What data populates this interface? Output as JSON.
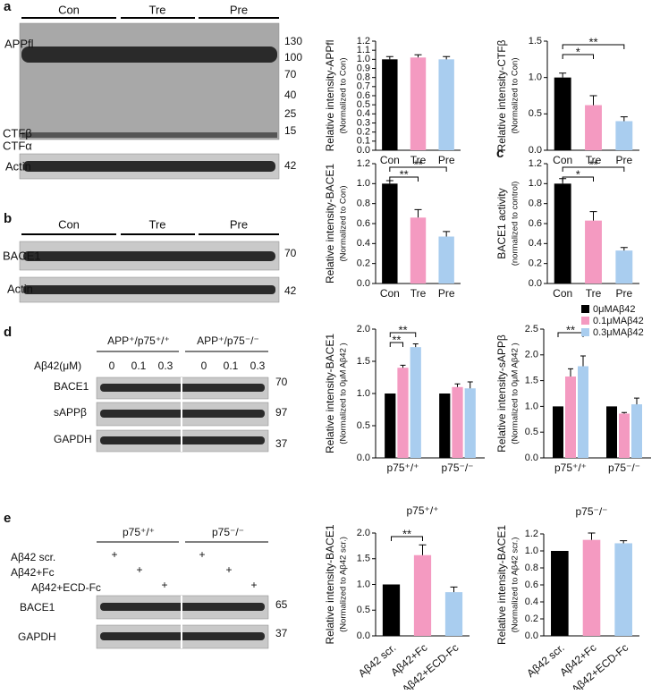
{
  "figure": {
    "panel_letters": [
      "a",
      "b",
      "c",
      "d",
      "e"
    ],
    "blot_a": {
      "groups": [
        "Con",
        "Tre",
        "Pre"
      ],
      "rows": [
        "APPfl",
        "CTFβ",
        "CTFα",
        "Actin"
      ],
      "markers": [
        130,
        100,
        70,
        40,
        25,
        15,
        42
      ]
    },
    "blot_b": {
      "groups": [
        "Con",
        "Tre",
        "Pre"
      ],
      "rows": [
        "BACE1",
        "Actin"
      ],
      "markers": [
        70,
        42
      ]
    },
    "blot_d": {
      "groups": [
        "APP⁺/p75⁺/⁺",
        "APP⁺/p75⁻/⁻"
      ],
      "dose_label": "Aβ42(μM)",
      "doses": [
        0,
        0.1,
        0.3
      ],
      "rows": [
        "BACE1",
        "sAPPβ",
        "GAPDH"
      ],
      "markers": [
        70,
        97,
        37
      ]
    },
    "blot_e": {
      "groups": [
        "p75⁺/⁺",
        "p75⁻/⁻"
      ],
      "treatments": [
        {
          "label": "Aβ42 scr.",
          "marks": [
            "+",
            "+"
          ]
        },
        {
          "label": "Aβ42+Fc",
          "marks": [
            "+",
            "+"
          ]
        },
        {
          "label": "Aβ42+ECD-Fc",
          "marks": [
            "+",
            "+"
          ]
        }
      ],
      "rows": [
        "BACE1",
        "GAPDH"
      ],
      "markers": [
        65,
        37
      ]
    }
  },
  "chart_data": [
    {
      "type": "bar",
      "ylabel": "Relative intensity-APPfl",
      "ylabel_sub": "(Normalized to Con)",
      "categories": [
        "Con",
        "Tre",
        "Pre"
      ],
      "values": [
        1.0,
        1.02,
        1.0
      ],
      "errors": [
        0.03,
        0.03,
        0.03
      ],
      "colors": [
        "#000000",
        "#f49ac1",
        "#a9cdef"
      ],
      "ylim": [
        0,
        1.2
      ],
      "yticks": [
        {
          "value": 0,
          "label": "0.0"
        },
        0.1,
        0.2,
        0.3,
        0.4,
        0.5,
        0.6,
        0.7,
        0.8,
        0.9,
        {
          "value": 1,
          "label": "1.0"
        },
        1.1,
        1.2
      ]
    },
    {
      "type": "bar",
      "ylabel": "Relative intensity-CTFβ",
      "ylabel_sub": "(Normalized to Con)",
      "categories": [
        "Con",
        "Tre",
        "Pre"
      ],
      "values": [
        1.0,
        0.62,
        0.4
      ],
      "errors": [
        0.06,
        0.13,
        0.06
      ],
      "colors": [
        "#000000",
        "#f49ac1",
        "#a9cdef"
      ],
      "ylim": [
        0,
        1.5
      ],
      "yticks": [
        {
          "value": 0,
          "label": "0.0"
        },
        0.5,
        {
          "value": 1,
          "label": "1.0"
        },
        1.5
      ],
      "annotations": [
        {
          "label": "*",
          "between": [
            0,
            1
          ]
        },
        {
          "label": "**",
          "between": [
            0,
            2
          ]
        }
      ]
    },
    {
      "type": "bar",
      "ylabel": "Relative intensity-BACE1",
      "ylabel_sub": "(Normalized to Con)",
      "categories": [
        "Con",
        "Tre",
        "Pre"
      ],
      "values": [
        1.0,
        0.66,
        0.47
      ],
      "errors": [
        0.03,
        0.08,
        0.05
      ],
      "colors": [
        "#000000",
        "#f49ac1",
        "#a9cdef"
      ],
      "ylim": [
        0,
        1.2
      ],
      "yticks": [
        {
          "value": 0,
          "label": "0.0"
        },
        0.2,
        0.4,
        0.6,
        0.8,
        {
          "value": 1,
          "label": "1.0"
        },
        1.2
      ],
      "annotations": [
        {
          "label": "**",
          "between": [
            0,
            1
          ]
        },
        {
          "label": "**",
          "between": [
            0,
            2
          ]
        }
      ]
    },
    {
      "type": "bar",
      "ylabel": "BACE1 activity",
      "ylabel_sub": "(normalized to control)",
      "categories": [
        "Con",
        "Tre",
        "Pre"
      ],
      "values": [
        1.0,
        0.63,
        0.33
      ],
      "errors": [
        0.05,
        0.09,
        0.03
      ],
      "colors": [
        "#000000",
        "#f49ac1",
        "#a9cdef"
      ],
      "ylim": [
        0,
        1.2
      ],
      "yticks": [
        {
          "value": 0,
          "label": "0.0"
        },
        0.2,
        0.4,
        0.6,
        0.8,
        {
          "value": 1,
          "label": "1.0"
        },
        1.2
      ],
      "annotations": [
        {
          "label": "*",
          "between": [
            0,
            1
          ]
        },
        {
          "label": "**",
          "between": [
            0,
            2
          ]
        }
      ]
    },
    {
      "type": "grouped_bar",
      "ylabel": "Relative intensity-BACE1",
      "ylabel_sub": "(Normalized to 0μM Aβ42 )",
      "categories": [
        "p75⁺/⁺",
        "p75⁻/⁻"
      ],
      "series": [
        {
          "color": "#000000",
          "values": [
            1.0,
            1.0
          ],
          "errors": [
            0,
            0
          ]
        },
        {
          "color": "#f49ac1",
          "values": [
            1.4,
            1.1
          ],
          "errors": [
            0.04,
            0.05
          ]
        },
        {
          "color": "#a9cdef",
          "values": [
            1.72,
            1.08
          ],
          "errors": [
            0.05,
            0.1
          ]
        }
      ],
      "ylim": [
        0,
        2
      ],
      "yticks": [
        {
          "value": 0,
          "label": "0.0"
        },
        0.5,
        {
          "value": 1,
          "label": "1.0"
        },
        1.5,
        {
          "value": 2,
          "label": "2.0"
        }
      ],
      "annotations": [
        {
          "label": "**",
          "group": 0,
          "between": [
            0,
            1
          ]
        },
        {
          "label": "**",
          "group": 0,
          "between": [
            0,
            2
          ]
        }
      ]
    },
    {
      "type": "grouped_bar",
      "ylabel": "Relative intensity-sAPPβ",
      "ylabel_sub": "(Normalized to 0μM Aβ42 )",
      "categories": [
        "p75⁺/⁺",
        "p75⁻/⁻"
      ],
      "legend": "top-right",
      "series": [
        {
          "name": "0μMAβ42",
          "color": "#000000",
          "values": [
            1.0,
            1.0
          ],
          "errors": [
            0,
            0
          ]
        },
        {
          "name": "0.1μMAβ42",
          "color": "#f49ac1",
          "values": [
            1.58,
            0.86
          ],
          "errors": [
            0.15,
            0.02
          ]
        },
        {
          "name": "0.3μMAβ42",
          "color": "#a9cdef",
          "values": [
            1.78,
            1.04
          ],
          "errors": [
            0.2,
            0.12
          ]
        }
      ],
      "ylim": [
        0,
        2.5
      ],
      "yticks": [
        {
          "value": 0,
          "label": "0.0"
        },
        0.5,
        {
          "value": 1,
          "label": "1.0"
        },
        1.5,
        {
          "value": 2,
          "label": "2.0"
        },
        2.5
      ],
      "annotations": [
        {
          "label": "**",
          "group": 0,
          "between": [
            0,
            2
          ]
        }
      ]
    },
    {
      "type": "bar",
      "title": "p75⁺/⁺",
      "ylabel": "Relative intensity-BACE1",
      "ylabel_sub": "(Normalized to Aβ42 scr.)",
      "categories": [
        "Aβ42 scr.",
        "Aβ42+Fc",
        "Aβ42+ECD-Fc"
      ],
      "values": [
        1.0,
        1.57,
        0.85
      ],
      "errors": [
        0,
        0.2,
        0.1
      ],
      "colors": [
        "#000000",
        "#f49ac1",
        "#a9cdef"
      ],
      "ylim": [
        0,
        2
      ],
      "yticks": [
        {
          "value": 0,
          "label": "0.0"
        },
        0.5,
        {
          "value": 1,
          "label": "1.0"
        },
        1.5,
        {
          "value": 2,
          "label": "2.0"
        }
      ],
      "annotations": [
        {
          "label": "**",
          "between": [
            0,
            1
          ]
        }
      ]
    },
    {
      "type": "bar",
      "title": "p75⁻/⁻",
      "ylabel": "Relative intensity-BACE1",
      "ylabel_sub": "(Normalized to Aβ42 scr.)",
      "categories": [
        "Aβ42 scr.",
        "Aβ42+Fc",
        "Aβ42+ECD-Fc"
      ],
      "values": [
        1.0,
        1.13,
        1.09
      ],
      "errors": [
        0,
        0.08,
        0.03
      ],
      "colors": [
        "#000000",
        "#f49ac1",
        "#a9cdef"
      ],
      "ylim": [
        0,
        1.2
      ],
      "yticks": [
        {
          "value": 0,
          "label": "0.0"
        },
        0.2,
        0.4,
        0.6,
        0.8,
        {
          "value": 1,
          "label": "1.0"
        },
        1.2
      ]
    }
  ]
}
